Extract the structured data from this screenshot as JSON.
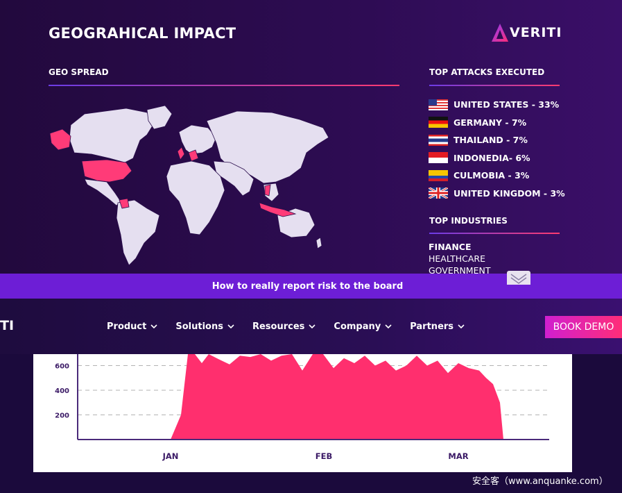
{
  "report": {
    "title": "GEOGRAHICAL IMPACT",
    "brand": "VERITI",
    "geo_spread": {
      "heading": "GEO SPREAD"
    },
    "top_attacks": {
      "heading": "TOP ATTACKS EXECUTED",
      "items": [
        {
          "label": "UNITED STATES - 33%",
          "flag": "us-flag-icon"
        },
        {
          "label": "GERMANY - 7%",
          "flag": "germany-flag-icon"
        },
        {
          "label": "THAILAND - 7%",
          "flag": "thailand-flag-icon"
        },
        {
          "label": "INDONEDIA- 6%",
          "flag": "indonesia-flag-icon"
        },
        {
          "label": "CULMOBIA - 3%",
          "flag": "colombia-flag-icon"
        },
        {
          "label": "UNITED KINGDOM - 3%",
          "flag": "uk-flag-icon"
        }
      ]
    },
    "top_industries": {
      "heading": "TOP INDUSTRIES",
      "items": [
        "FINANCE",
        "HEALTHCARE",
        "GOVERNMENT"
      ]
    }
  },
  "banner": {
    "text": "How to really report risk to the board"
  },
  "nav": {
    "logo_fragment": "TI",
    "items": [
      "Product",
      "Solutions",
      "Resources",
      "Company",
      "Partners"
    ],
    "cta": "BOOK DEMO"
  },
  "chart_data": {
    "type": "area",
    "x_labels": [
      "JAN",
      "FEB",
      "MAR"
    ],
    "y_ticks": [
      200,
      400,
      600
    ],
    "color": "#ff2f6e",
    "x": [
      0,
      3,
      5,
      7,
      9,
      11,
      14,
      17,
      20,
      23,
      26,
      29,
      32,
      35,
      38,
      41,
      44,
      47,
      50,
      53,
      56,
      59,
      62,
      65,
      68,
      71,
      74,
      77,
      80,
      83,
      86,
      89,
      91,
      93,
      95,
      96
    ],
    "y": [
      0,
      200,
      760,
      720,
      620,
      700,
      650,
      610,
      680,
      670,
      720,
      640,
      680,
      700,
      560,
      720,
      700,
      580,
      660,
      620,
      680,
      600,
      640,
      560,
      600,
      680,
      600,
      640,
      540,
      620,
      580,
      560,
      500,
      450,
      300,
      0
    ]
  },
  "watermark": "安全客（www.anquanke.com）"
}
